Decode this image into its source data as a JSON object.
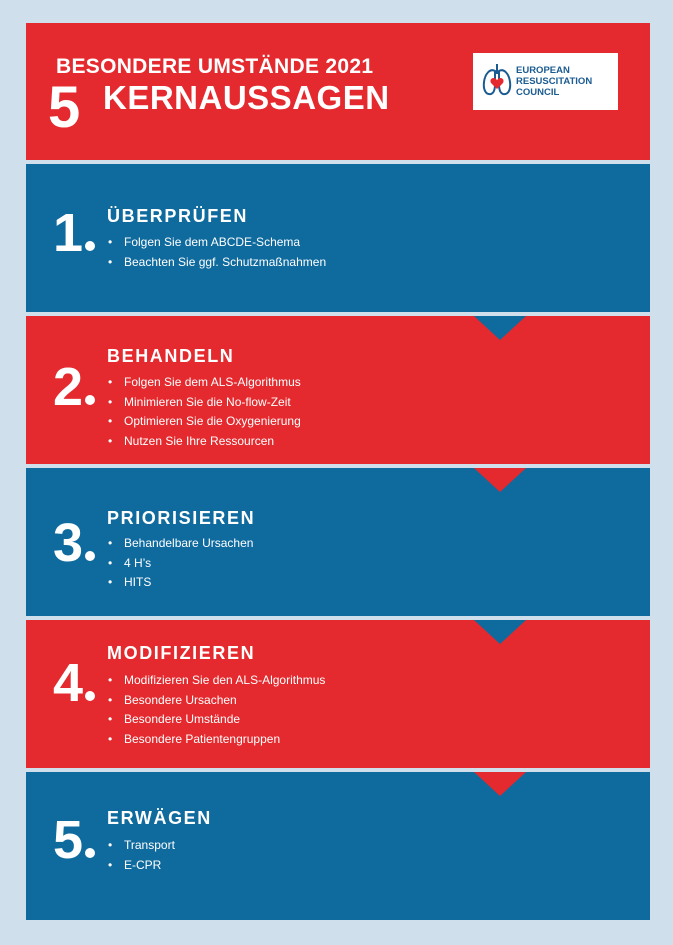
{
  "header": {
    "title": "BESONDERE UMSTÄNDE 2021",
    "number": "5",
    "subtitle": "KERNAUSSAGEN",
    "logo": {
      "icon": "lungs-heart-icon",
      "line1": "EUROPEAN",
      "line2": "RESUSCITATION",
      "line3": "COUNCIL"
    }
  },
  "colors": {
    "red": "#e42a2e",
    "blue": "#0f6a9e",
    "background": "#cfe0ec"
  },
  "sections": [
    {
      "number": "1",
      "title": "ÜBERPRÜFEN",
      "items": [
        "Folgen Sie dem ABCDE-Schema",
        "Beachten Sie ggf. Schutzmaßnahmen"
      ]
    },
    {
      "number": "2",
      "title": "BEHANDELN",
      "items": [
        "Folgen Sie dem ALS-Algorithmus",
        "Minimieren Sie die No-flow-Zeit",
        "Optimieren Sie die Oxygenierung",
        "Nutzen Sie Ihre Ressourcen"
      ]
    },
    {
      "number": "3",
      "title": "PRIORISIEREN",
      "items": [
        "Behandelbare Ursachen",
        "4 H’s",
        "HITS"
      ]
    },
    {
      "number": "4",
      "title": "MODIFIZIEREN",
      "items": [
        "Modifizieren Sie den ALS-Algorithmus",
        "Besondere Ursachen",
        "Besondere Umstände",
        "Besondere Patientengruppen"
      ]
    },
    {
      "number": "5",
      "title": "ERWÄGEN",
      "items": [
        "Transport",
        "E-CPR"
      ]
    }
  ]
}
